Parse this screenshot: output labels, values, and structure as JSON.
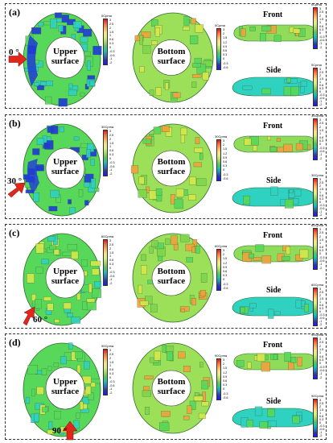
{
  "panels": [
    {
      "label": "(a)",
      "angle": "0 °",
      "cp_title": "0Cpma",
      "ticks_main": [
        "3",
        "2.5",
        "2",
        "1.5",
        "1",
        "0.6",
        "0.3",
        "0",
        "-0.3",
        "-0.6",
        "-1",
        "-2"
      ],
      "ticks_bottom": [
        "3",
        "2",
        "1.5",
        "1.2",
        "0.9",
        "0.6",
        "0.3",
        "0",
        "-0.3",
        "-0.6"
      ]
    },
    {
      "label": "(b)",
      "angle": "30 °",
      "cp_title": "30Cpma",
      "ticks_main": [
        "3",
        "2.5",
        "2",
        "1.5",
        "1",
        "0.6",
        "0.3",
        "0",
        "-0.3",
        "-0.6",
        "-1",
        "-2"
      ],
      "ticks_bottom": [
        "3",
        "2",
        "1.5",
        "1.2",
        "0.9",
        "0.6",
        "0.3",
        "0",
        "-0.3",
        "-0.6"
      ]
    },
    {
      "label": "(c)",
      "angle": "60 °",
      "cp_title": "60Cpma",
      "ticks_main": [
        "3",
        "2.5",
        "2",
        "1.5",
        "1",
        "0.6",
        "0.3",
        "0",
        "-0.3",
        "-0.6",
        "-1",
        "-2"
      ],
      "ticks_bottom": [
        "3",
        "2",
        "1.5",
        "1.2",
        "0.9",
        "0.6",
        "0.3",
        "0",
        "-0.3",
        "-0.6"
      ]
    },
    {
      "label": "(d)",
      "angle": "90 °",
      "cp_title": "90Cpma",
      "ticks_main": [
        "3",
        "2.5",
        "2",
        "1.5",
        "1",
        "0.6",
        "0.3",
        "0",
        "-0.3",
        "-0.6",
        "-1",
        "-2"
      ],
      "ticks_bottom": [
        "3",
        "2",
        "1.5",
        "1.2",
        "0.9",
        "0.6",
        "0.3",
        "0",
        "-0.3",
        "-0.6"
      ]
    }
  ],
  "labels": {
    "upper": "Upper surface",
    "bottom": "Bottom surface",
    "front": "Front",
    "side": "Side"
  },
  "colors": {
    "arrow": "#e2261c",
    "green": "#58d85a",
    "cyan": "#2fd1c0",
    "blue": "#1f3bd6",
    "yellow": "#d6e84a",
    "orange": "#f2a23c"
  }
}
